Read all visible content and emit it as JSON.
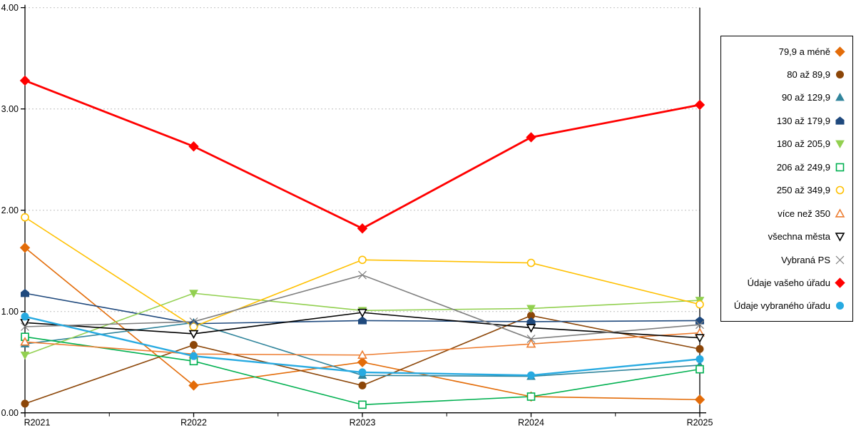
{
  "chart_data": {
    "type": "line",
    "title": "",
    "xlabel": "",
    "ylabel": "",
    "x_categories": [
      "R2021",
      "R2022",
      "R2023",
      "R2024",
      "R2025"
    ],
    "ylim": [
      0,
      4
    ],
    "y_tick_labels": [
      "0.00",
      "1.00",
      "2.00",
      "3.00",
      "4.00"
    ],
    "grid": {
      "horizontal": true,
      "style": "dashed",
      "color": "#BFBFBF"
    },
    "axis_color": "#000000",
    "x_minor_ticks_between_categories": true,
    "legend_position": "right",
    "series": [
      {
        "name": "79,9 a méně",
        "color": "#E36C09",
        "marker": "diamond",
        "marker_fill": "filled",
        "line_width": 1.6,
        "values": [
          1.63,
          0.27,
          0.5,
          0.16,
          0.13
        ]
      },
      {
        "name": "80 až 89,9",
        "color": "#8C4608",
        "marker": "circle",
        "marker_fill": "filled",
        "line_width": 1.6,
        "values": [
          0.09,
          0.67,
          0.27,
          0.96,
          0.63
        ]
      },
      {
        "name": "90 až 129,9",
        "color": "#31859C",
        "marker": "triangle-up",
        "marker_fill": "filled",
        "line_width": 1.6,
        "values": [
          0.68,
          0.89,
          0.37,
          0.36,
          0.47
        ]
      },
      {
        "name": "130 až 179,9",
        "color": "#1F497D",
        "marker": "pentagon",
        "marker_fill": "filled",
        "line_width": 1.6,
        "values": [
          1.18,
          0.88,
          0.91,
          0.9,
          0.91
        ]
      },
      {
        "name": "180 až 205,9",
        "color": "#92D050",
        "marker": "triangle-down",
        "marker_fill": "filled",
        "line_width": 1.6,
        "values": [
          0.57,
          1.18,
          1.01,
          1.03,
          1.11
        ]
      },
      {
        "name": "206 až 249,9",
        "color": "#00B050",
        "marker": "square",
        "marker_fill": "open",
        "line_width": 1.6,
        "values": [
          0.75,
          0.51,
          0.08,
          0.16,
          0.43
        ]
      },
      {
        "name": "250 až 349,9",
        "color": "#FFC000",
        "marker": "circle",
        "marker_fill": "open",
        "line_width": 1.6,
        "values": [
          1.93,
          0.85,
          1.51,
          1.48,
          1.07
        ]
      },
      {
        "name": "více než 350",
        "color": "#ED7D31",
        "marker": "triangle-up",
        "marker_fill": "open",
        "line_width": 1.6,
        "values": [
          0.7,
          0.58,
          0.57,
          0.68,
          0.79
        ]
      },
      {
        "name": "všechna města",
        "color": "#000000",
        "marker": "triangle-down",
        "marker_fill": "open",
        "line_width": 1.6,
        "values": [
          0.89,
          0.78,
          0.99,
          0.84,
          0.74
        ]
      },
      {
        "name": "Vybraná PS",
        "color": "#7F7F7F",
        "marker": "x",
        "marker_fill": "open",
        "line_width": 1.6,
        "values": [
          0.85,
          0.9,
          1.36,
          0.73,
          0.87
        ]
      },
      {
        "name": "Údaje vašeho úřadu",
        "color": "#FF0000",
        "marker": "diamond",
        "marker_fill": "filled",
        "line_width": 2.8,
        "values": [
          3.28,
          2.63,
          1.82,
          2.72,
          3.04
        ]
      },
      {
        "name": "Údaje vybraného úřadu",
        "color": "#27AAE1",
        "marker": "circle",
        "marker_fill": "filled",
        "line_width": 2.4,
        "values": [
          0.95,
          0.56,
          0.4,
          0.37,
          0.53
        ]
      }
    ]
  }
}
